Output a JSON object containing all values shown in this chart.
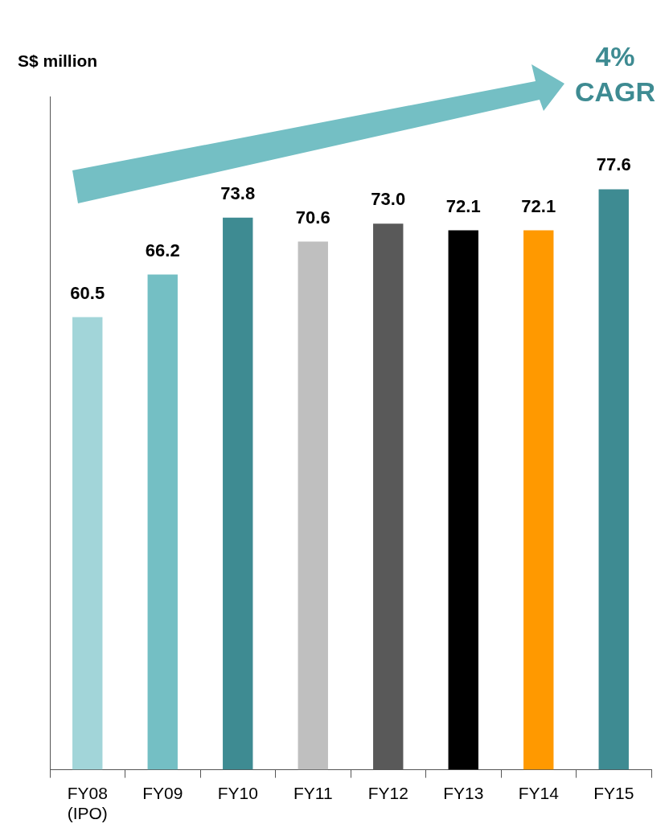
{
  "chart_data": {
    "type": "bar",
    "ylabel": "S$ million",
    "categories": [
      "FY08\n(IPO)",
      "FY09",
      "FY10",
      "FY11",
      "FY12",
      "FY13",
      "FY14",
      "FY15"
    ],
    "values": [
      60.5,
      66.2,
      73.8,
      70.6,
      73.0,
      72.1,
      72.1,
      77.6
    ],
    "colors": [
      "#a2d5d9",
      "#74bfc4",
      "#3e8b92",
      "#bfbfbf",
      "#595959",
      "#000000",
      "#ff9900",
      "#3e8b92"
    ],
    "value_labels": [
      "60.5",
      "66.2",
      "73.8",
      "70.6",
      "73.0",
      "72.1",
      "72.1",
      "77.6"
    ],
    "ylim": [
      0,
      90
    ],
    "legend": false,
    "annotations": [
      "4%\nCAGR"
    ]
  }
}
